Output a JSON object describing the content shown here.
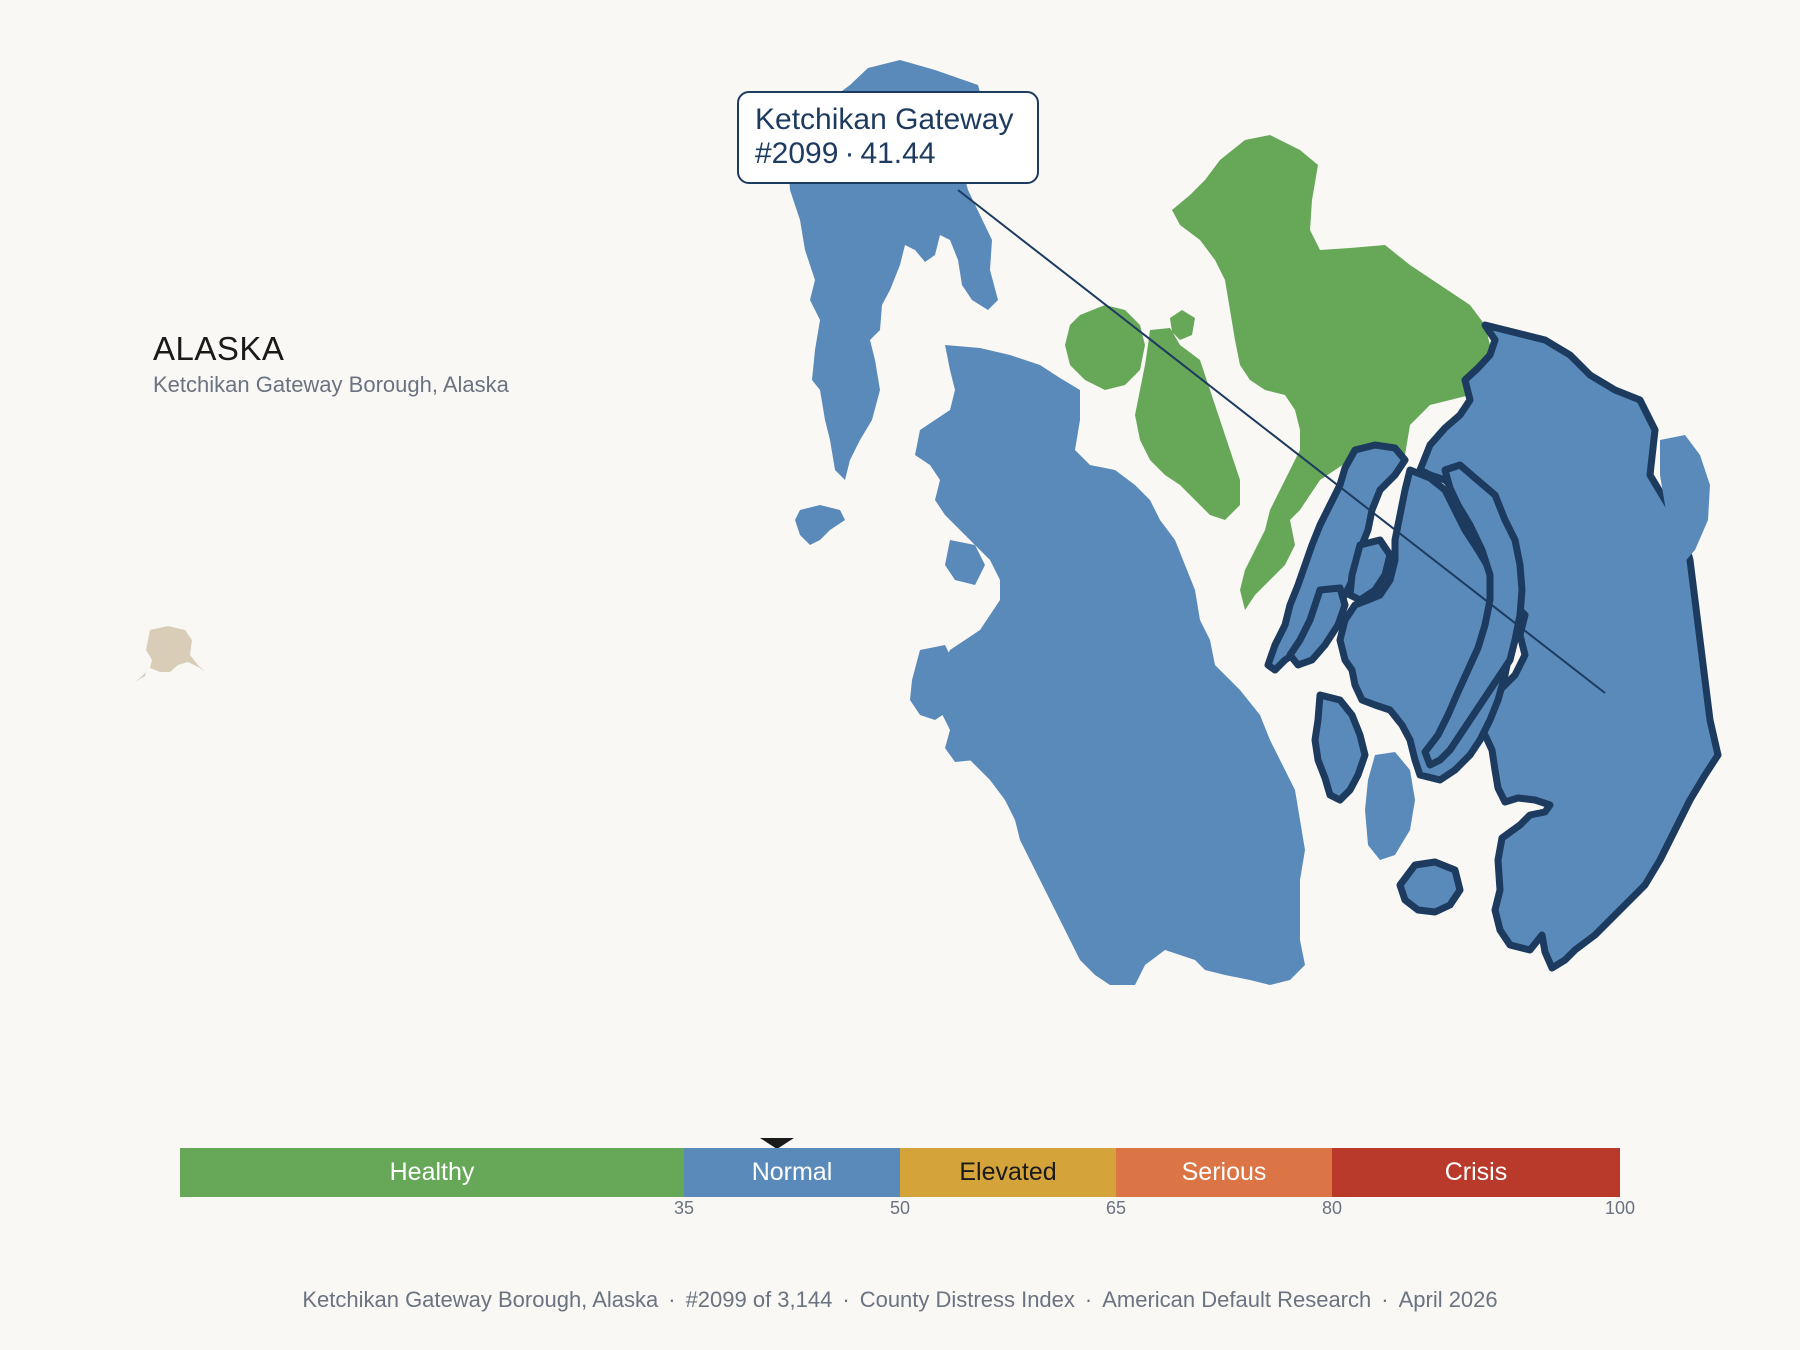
{
  "header": {
    "state": "ALASKA",
    "county_full": "Ketchikan Gateway Borough, Alaska"
  },
  "tooltip": {
    "county": "Ketchikan Gateway",
    "rank": "#2099",
    "score": "41.44"
  },
  "marker_score": 41.44,
  "legend": {
    "segments": [
      {
        "label": "Healthy",
        "from": 0,
        "to": 35,
        "color": "#66a758",
        "text_color": "#ffffff"
      },
      {
        "label": "Normal",
        "from": 35,
        "to": 50,
        "color": "#5a8aba",
        "text_color": "#ffffff"
      },
      {
        "label": "Elevated",
        "from": 50,
        "to": 65,
        "color": "#d4a33a",
        "text_color": "#1a1a1a"
      },
      {
        "label": "Serious",
        "from": 65,
        "to": 80,
        "color": "#dc7546",
        "text_color": "#ffffff"
      },
      {
        "label": "Crisis",
        "from": 80,
        "to": 100,
        "color": "#b93a2a",
        "text_color": "#ffffff"
      }
    ],
    "ticks": [
      "35",
      "50",
      "65",
      "80",
      "100"
    ]
  },
  "map_colors": {
    "normal": "#5a8aba",
    "healthy": "#66a758",
    "highlight_outline": "#1d3a5f",
    "inset": "#d9cdb8"
  },
  "footer": {
    "county": "Ketchikan Gateway Borough, Alaska",
    "rank": "#2099 of 3,144",
    "index": "County Distress Index",
    "source": "American Default Research",
    "date": "April 2026"
  }
}
